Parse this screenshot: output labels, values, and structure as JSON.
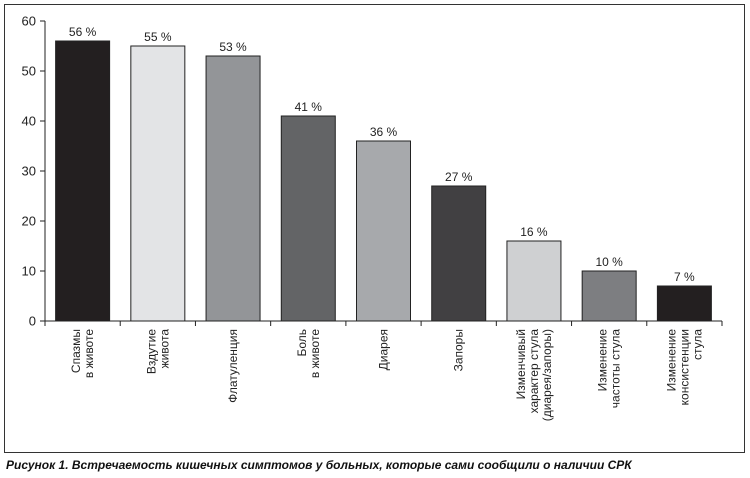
{
  "caption": "Рисунок 1. Встречаемость кишечных симптомов у больных, которые сами сообщили о наличии СРК",
  "chart_data": {
    "type": "bar",
    "title": "",
    "xlabel": "",
    "ylabel": "",
    "ylim": [
      0,
      60
    ],
    "yticks": [
      0,
      10,
      20,
      30,
      40,
      50,
      60
    ],
    "grid": false,
    "categories": [
      [
        "Спазмы",
        "в животе"
      ],
      [
        "Вздутие",
        "живота"
      ],
      [
        "Флатуленция"
      ],
      [
        "Боль",
        "в животе"
      ],
      [
        "Диарея"
      ],
      [
        "Запоры"
      ],
      [
        "Изменчивый",
        "характер стула",
        "(диарея/запоры)"
      ],
      [
        "Изменение",
        "частоты стула"
      ],
      [
        "Изменение",
        "консистенции",
        "стула"
      ]
    ],
    "values": [
      56,
      55,
      53,
      41,
      36,
      27,
      16,
      10,
      7
    ],
    "value_labels": [
      "56 %",
      "55 %",
      "53 %",
      "41 %",
      "36 %",
      "27 %",
      "16 %",
      "10 %",
      "7 %"
    ],
    "bar_colors": [
      "#231f20",
      "#e3e4e6",
      "#939598",
      "#636466",
      "#a7a9ac",
      "#414042",
      "#cfd0d2",
      "#7d7e81",
      "#231f20"
    ]
  }
}
